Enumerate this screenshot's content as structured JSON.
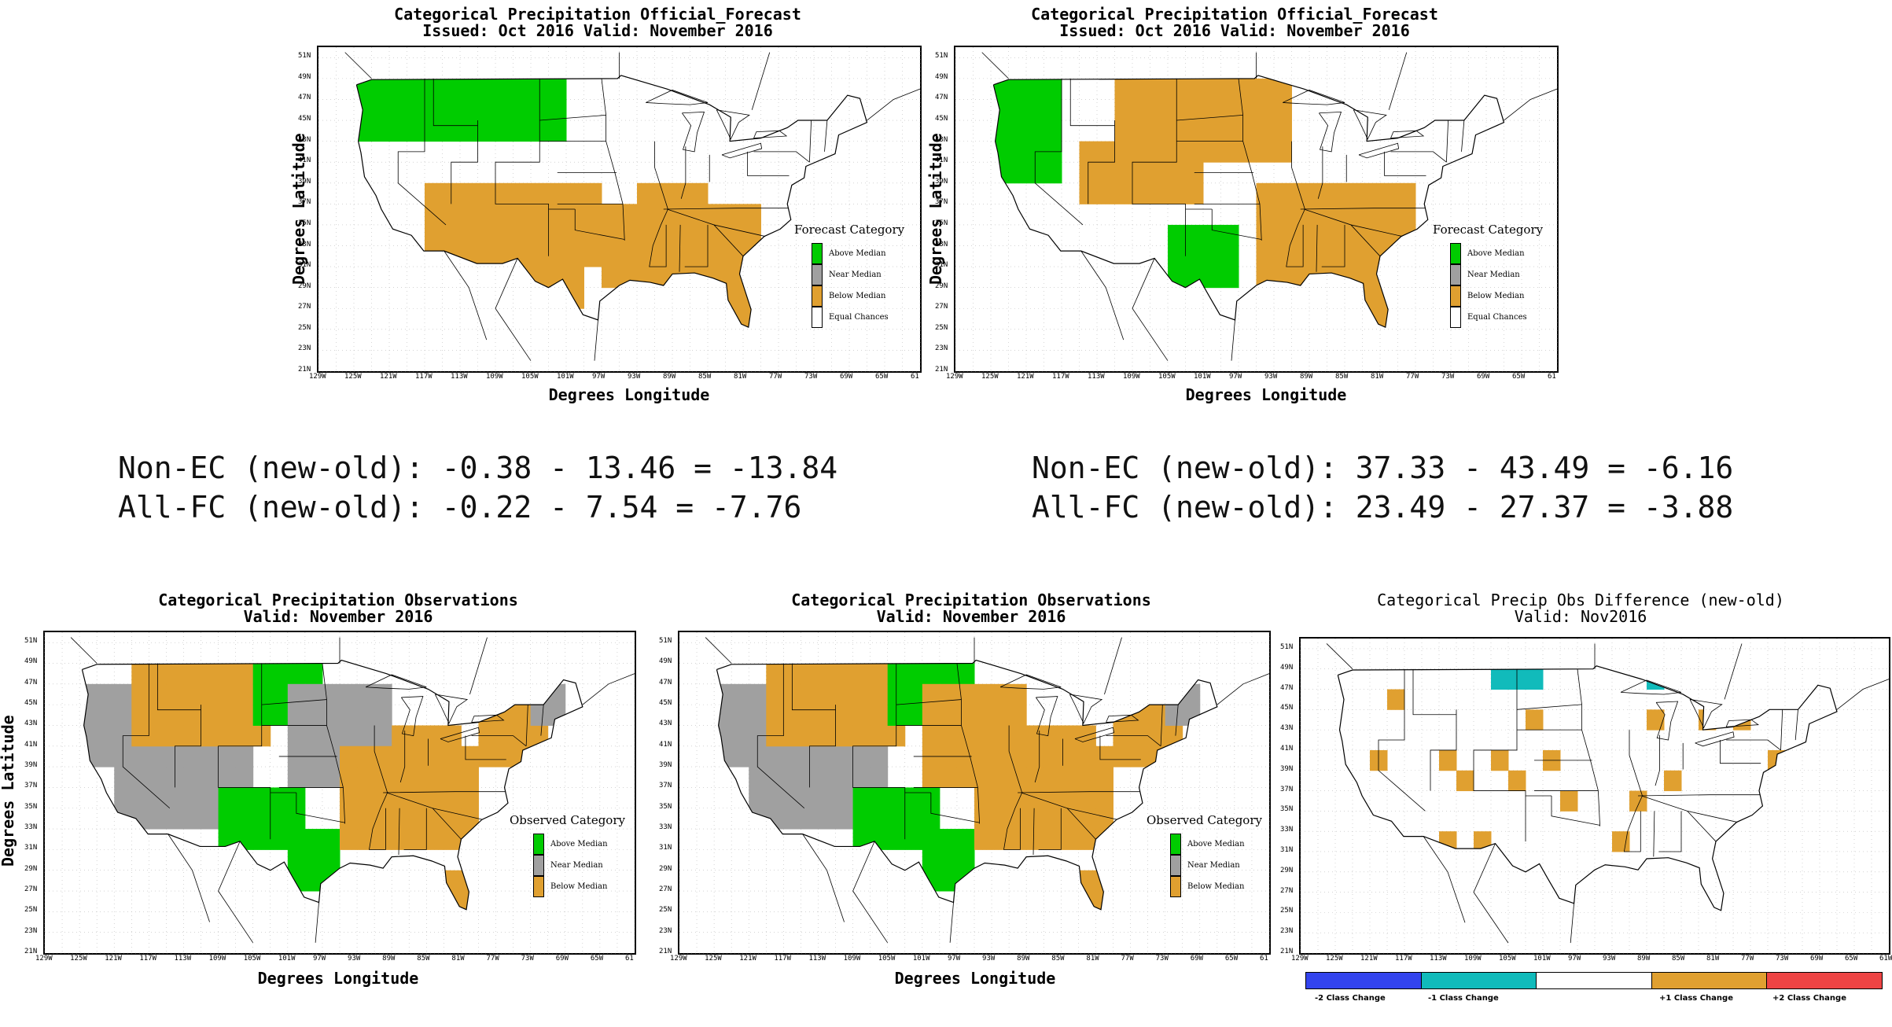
{
  "colors": {
    "above": "#00cc00",
    "near": "#a0a0a0",
    "below": "#e0a030",
    "equal": "#ffffff",
    "diff_m2": "#3344ee",
    "diff_m1": "#11bbbb",
    "diff_0": "#ffffff",
    "diff_p1": "#e0a030",
    "diff_p2": "#ee4444"
  },
  "axes": {
    "lat_labels": [
      "51N",
      "49N",
      "47N",
      "45N",
      "43N",
      "41N",
      "39N",
      "37N",
      "35N",
      "33N",
      "31N",
      "29N",
      "27N",
      "25N",
      "23N",
      "21N"
    ],
    "lon_labels": [
      "129W",
      "125W",
      "121W",
      "117W",
      "113W",
      "109W",
      "105W",
      "101W",
      "97W",
      "93W",
      "89W",
      "85W",
      "81W",
      "77W",
      "73W",
      "69W",
      "65W",
      "61"
    ],
    "lon_labels_diff": [
      "129W",
      "125W",
      "121W",
      "117W",
      "113W",
      "109W",
      "105W",
      "101W",
      "97W",
      "93W",
      "89W",
      "85W",
      "81W",
      "77W",
      "73W",
      "69W",
      "65W",
      "61W"
    ],
    "ylabel": "Degrees Latitude",
    "xlabel": "Degrees Longitude"
  },
  "panels": [
    {
      "id": "fc_old",
      "title1": "Categorical Precipitation Official_Forecast",
      "title2": "Issued: Oct 2016 Valid: November 2016",
      "legend_title": "Forecast Category",
      "legend": [
        "Above Median",
        "Near Median",
        "Below Median",
        "Equal Chances"
      ]
    },
    {
      "id": "fc_new",
      "title1": "Categorical Precipitation Official_Forecast",
      "title2": "Issued: Oct 2016 Valid: November 2016",
      "legend_title": "Forecast Category",
      "legend": [
        "Above Median",
        "Near Median",
        "Below Median",
        "Equal Chances"
      ]
    },
    {
      "id": "obs_old",
      "title1": "Categorical Precipitation Observations",
      "title2": "Valid: November 2016",
      "legend_title": "Observed Category",
      "legend": [
        "Above Median",
        "Near Median",
        "Below Median"
      ]
    },
    {
      "id": "obs_new",
      "title1": "Categorical Precipitation Observations",
      "title2": "Valid: November 2016",
      "legend_title": "Observed Category",
      "legend": [
        "Above Median",
        "Near Median",
        "Below Median"
      ]
    },
    {
      "id": "diff",
      "title1": "Categorical Precip Obs Difference (new-old)",
      "title2": "Valid: Nov2016",
      "legend": [
        "-2 Class Change",
        "-1 Class Change",
        "",
        "+1 Class Change",
        "+2 Class Change"
      ]
    }
  ],
  "stats": {
    "left": {
      "line1": "Non-EC (new-old): -0.38 - 13.46 = -13.84",
      "line2": "All-FC (new-old): -0.22 - 7.54 = -7.76"
    },
    "right": {
      "line1": "Non-EC (new-old): 37.33 - 43.49 = -6.16",
      "line2": "All-FC (new-old): 23.49 - 27.37 = -3.88"
    }
  }
}
